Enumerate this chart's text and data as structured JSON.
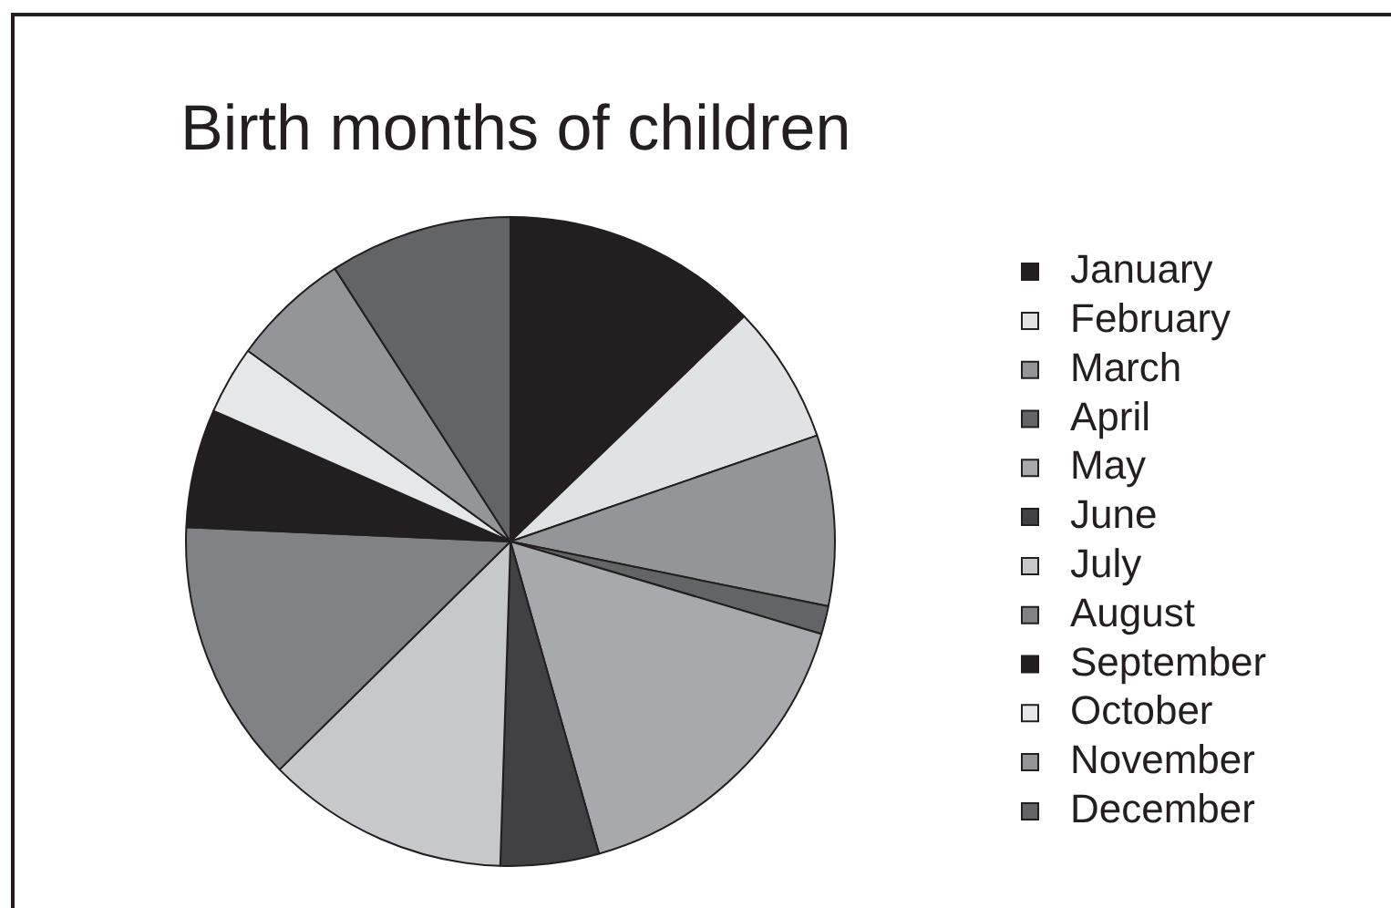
{
  "chart_data": {
    "type": "pie",
    "title": "Birth months of children",
    "categories": [
      "January",
      "February",
      "March",
      "April",
      "May",
      "June",
      "July",
      "August",
      "September",
      "October",
      "November",
      "December"
    ],
    "values": [
      12.8,
      6.9,
      8.5,
      1.4,
      16.0,
      4.9,
      12.1,
      13.1,
      5.9,
      3.4,
      5.9,
      9.1
    ],
    "colors": [
      "#231f20",
      "#e1e2e3",
      "#939598",
      "#636466",
      "#a7a9ac",
      "#414042",
      "#c7c8ca",
      "#808285",
      "#231f20",
      "#e6e7e8",
      "#939598",
      "#636466"
    ],
    "legend": "right"
  }
}
